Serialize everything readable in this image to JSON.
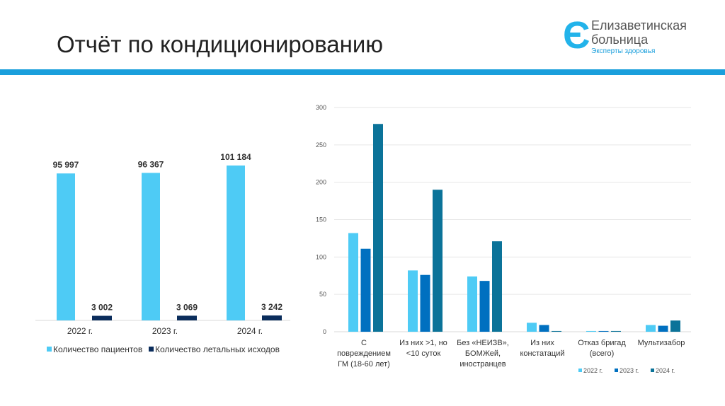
{
  "header": {
    "title": "Отчёт по кондиционированию",
    "logo_line1": "Елизаветинская",
    "logo_line2": "больница",
    "logo_tagline": "Эксперты здоровья"
  },
  "chart_data": [
    {
      "type": "bar",
      "categories": [
        "2022 г.",
        "2023 г.",
        "2024 г."
      ],
      "series": [
        {
          "name": "Количество пациентов",
          "values": [
            95997,
            96367,
            101184
          ],
          "labels": [
            "95 997",
            "96 367",
            "101 184"
          ],
          "color": "#4ecbf5"
        },
        {
          "name": "Количество летальных исходов",
          "values": [
            3002,
            3069,
            3242
          ],
          "labels": [
            "3 002",
            "3 069",
            "3 242"
          ],
          "color": "#0b2d5c"
        }
      ],
      "legend": "bottom",
      "grid": false
    },
    {
      "type": "bar",
      "categories": [
        [
          "С",
          "повреждением",
          "ГМ (18-60 лет)"
        ],
        [
          "Из них >1, но",
          "<10 суток"
        ],
        [
          "Без «НЕИЗВ»,",
          "БОМЖей,",
          "иностранцев"
        ],
        [
          "Из них",
          "констатаций"
        ],
        [
          "Отказ бригад",
          "(всего)"
        ],
        [
          "Мультизабор"
        ]
      ],
      "series": [
        {
          "name": "2022 г.",
          "values": [
            132,
            82,
            74,
            12,
            1,
            9
          ],
          "color": "#4ecbf5"
        },
        {
          "name": "2023 г.",
          "values": [
            111,
            76,
            68,
            9,
            1,
            8
          ],
          "color": "#0070c0"
        },
        {
          "name": "2024 г.",
          "values": [
            278,
            190,
            121,
            1,
            1,
            15
          ],
          "color": "#0b7399"
        }
      ],
      "ylim": [
        0,
        300
      ],
      "yticks": [
        0,
        50,
        100,
        150,
        200,
        250,
        300
      ],
      "grid": true,
      "legend": "bottom-right"
    }
  ]
}
